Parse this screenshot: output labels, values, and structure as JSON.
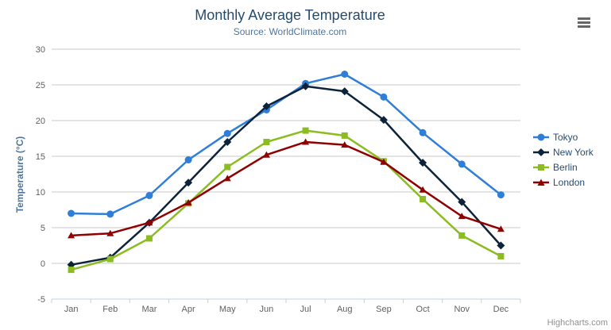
{
  "title": "Monthly Average Temperature",
  "subtitle": "Source: WorldClimate.com",
  "credit": "Highcharts.com",
  "menu": {
    "icon": "hamburger-icon",
    "tooltip": "Chart context menu"
  },
  "colors": {
    "title": "#274b6d",
    "subtitle": "#4d759e",
    "axis_labels": "#606060",
    "y_axis_title": "#4d759e",
    "gridline": "#c9c9c9",
    "x_axis_line": "#c0d0e0",
    "legend_text": "#274b6d",
    "credit_text": "#909090",
    "menu_icon": "#666666"
  },
  "chart_data": {
    "type": "line",
    "title": "Monthly Average Temperature",
    "subtitle": "Source: WorldClimate.com",
    "xlabel": "",
    "ylabel": "Temperature (°C)",
    "ylim": [
      -5,
      30
    ],
    "y_ticks": [
      30,
      25,
      20,
      15,
      10,
      5,
      0,
      -5
    ],
    "grid": true,
    "legend_position": "right",
    "categories": [
      "Jan",
      "Feb",
      "Mar",
      "Apr",
      "May",
      "Jun",
      "Jul",
      "Aug",
      "Sep",
      "Oct",
      "Nov",
      "Dec"
    ],
    "series": [
      {
        "name": "Tokyo",
        "color": "#2f7ed8",
        "marker": "circle",
        "values": [
          7.0,
          6.9,
          9.5,
          14.5,
          18.2,
          21.5,
          25.2,
          26.5,
          23.3,
          18.3,
          13.9,
          9.6
        ]
      },
      {
        "name": "New York",
        "color": "#0d233a",
        "marker": "diamond",
        "values": [
          -0.2,
          0.8,
          5.7,
          11.3,
          17.0,
          22.0,
          24.8,
          24.1,
          20.1,
          14.1,
          8.6,
          2.5
        ]
      },
      {
        "name": "Berlin",
        "color": "#8bbc21",
        "marker": "square",
        "values": [
          -0.9,
          0.6,
          3.5,
          8.4,
          13.5,
          17.0,
          18.6,
          17.9,
          14.3,
          9.0,
          3.9,
          1.0
        ]
      },
      {
        "name": "London",
        "color": "#910000",
        "marker": "triangle",
        "values": [
          3.9,
          4.2,
          5.7,
          8.5,
          11.9,
          15.2,
          17.0,
          16.6,
          14.2,
          10.3,
          6.6,
          4.8
        ]
      }
    ]
  }
}
